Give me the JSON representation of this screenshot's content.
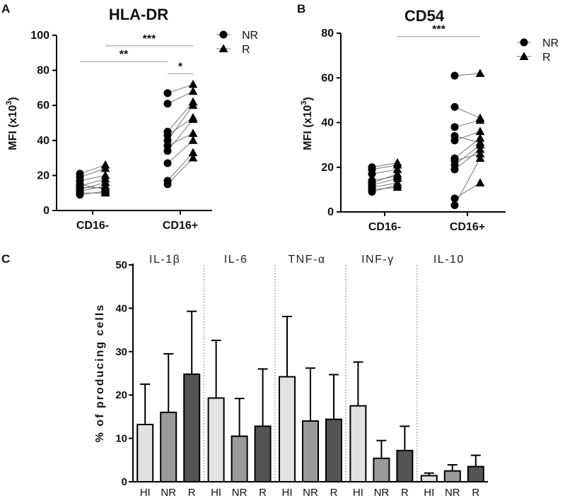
{
  "chart_data": [
    {
      "panel": "A",
      "type": "scatter",
      "title": "HLA-DR",
      "ylabel": "MFI (x10",
      "ylabel_exp": "3",
      "ylabel_close": ")",
      "ylim": [
        0,
        100
      ],
      "yticks": [
        0,
        20,
        40,
        60,
        80,
        100
      ],
      "categories": [
        "CD16-",
        "CD16+"
      ],
      "legend": [
        {
          "name": "NR",
          "marker": "circle"
        },
        {
          "name": "R",
          "marker": "triangle"
        }
      ],
      "significance": [
        {
          "label": "**",
          "from": "CD16- NR",
          "to": "CD16+ NR",
          "y": 85
        },
        {
          "label": "***",
          "from": "CD16- R",
          "to": "CD16+ R",
          "y": 94
        },
        {
          "label": "*",
          "from": "CD16+ NR",
          "to": "CD16+ R",
          "y": 78
        }
      ],
      "pairs": {
        "CD16-": [
          [
            9,
            11
          ],
          [
            11,
            14
          ],
          [
            12,
            16
          ],
          [
            13,
            13
          ],
          [
            14,
            18
          ],
          [
            15,
            12
          ],
          [
            17,
            20
          ],
          [
            19,
            24
          ],
          [
            21,
            26
          ],
          [
            10,
            10
          ]
        ],
        "CD16+": [
          [
            15,
            30
          ],
          [
            17,
            33
          ],
          [
            27,
            40
          ],
          [
            34,
            52
          ],
          [
            40,
            60
          ],
          [
            43,
            53
          ],
          [
            45,
            62
          ],
          [
            61,
            68
          ],
          [
            67,
            72
          ],
          [
            37,
            44
          ]
        ]
      }
    },
    {
      "panel": "B",
      "type": "scatter",
      "title": "CD54",
      "ylabel": "MFI (x10",
      "ylabel_exp": "3",
      "ylabel_close": ")",
      "ylim": [
        0,
        80
      ],
      "yticks": [
        0,
        20,
        40,
        60,
        80
      ],
      "categories": [
        "CD16-",
        "CD16+"
      ],
      "legend": [
        {
          "name": "NR",
          "marker": "circle"
        },
        {
          "name": "R",
          "marker": "triangle"
        }
      ],
      "significance": [
        {
          "label": "***",
          "from": "CD16- R",
          "to": "CD16+ R",
          "y": 78.5
        }
      ],
      "pairs": {
        "CD16-": [
          [
            9,
            12
          ],
          [
            10,
            11
          ],
          [
            12,
            15
          ],
          [
            13,
            17
          ],
          [
            14,
            16
          ],
          [
            17,
            19
          ],
          [
            19,
            21
          ],
          [
            20,
            22
          ],
          [
            11,
            13
          ]
        ],
        "CD16+": [
          [
            3,
            24
          ],
          [
            6,
            13
          ],
          [
            19,
            28
          ],
          [
            21,
            30
          ],
          [
            24,
            33
          ],
          [
            32,
            36
          ],
          [
            34,
            31
          ],
          [
            38,
            41
          ],
          [
            47,
            42
          ],
          [
            61,
            62
          ],
          [
            23,
            26
          ]
        ]
      }
    },
    {
      "panel": "C",
      "type": "bar",
      "ylabel": "% of producing cells",
      "ylim": [
        0,
        50
      ],
      "yticks": [
        0,
        10,
        20,
        30,
        40,
        50
      ],
      "group_names": [
        "IL-1β",
        "IL-6",
        "TNF-α",
        "INF-γ",
        "IL-10"
      ],
      "bar_labels": [
        "HI",
        "NR",
        "R"
      ],
      "series_colors": {
        "HI": "#e2e2e4",
        "NR": "#9a9a9c",
        "R": "#545456"
      },
      "groups": [
        {
          "name": "IL-1β",
          "bars": [
            {
              "label": "HI",
              "value": 13.2,
              "error": 9.3
            },
            {
              "label": "NR",
              "value": 16.0,
              "error": 13.5
            },
            {
              "label": "R",
              "value": 24.8,
              "error": 14.5
            }
          ]
        },
        {
          "name": "IL-6",
          "bars": [
            {
              "label": "HI",
              "value": 19.3,
              "error": 13.3
            },
            {
              "label": "NR",
              "value": 10.5,
              "error": 8.7
            },
            {
              "label": "R",
              "value": 12.8,
              "error": 13.2
            }
          ]
        },
        {
          "name": "TNF-α",
          "bars": [
            {
              "label": "HI",
              "value": 24.2,
              "error": 13.9
            },
            {
              "label": "NR",
              "value": 14.0,
              "error": 12.2
            },
            {
              "label": "R",
              "value": 14.4,
              "error": 10.3
            }
          ]
        },
        {
          "name": "INF-γ",
          "bars": [
            {
              "label": "HI",
              "value": 17.5,
              "error": 10.1
            },
            {
              "label": "NR",
              "value": 5.4,
              "error": 4.1
            },
            {
              "label": "R",
              "value": 7.2,
              "error": 5.6
            }
          ]
        },
        {
          "name": "IL-10",
          "bars": [
            {
              "label": "HI",
              "value": 1.4,
              "error": 0.6
            },
            {
              "label": "NR",
              "value": 2.5,
              "error": 1.4
            },
            {
              "label": "R",
              "value": 3.5,
              "error": 2.6
            }
          ]
        }
      ]
    }
  ]
}
